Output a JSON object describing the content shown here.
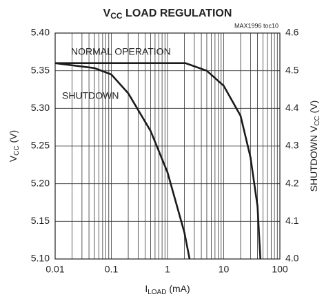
{
  "chart_data": {
    "type": "line",
    "title": [
      "V",
      "CC",
      " LOAD REGULATION"
    ],
    "annotation": "MAX1996 toc10",
    "xlabel": [
      "I",
      "LOAD",
      " (mA)"
    ],
    "ylabel": [
      "V",
      "CC",
      " (V)"
    ],
    "y2label": [
      "SHUTDOWN V",
      "CC",
      " (V)"
    ],
    "xscale": "log",
    "xlim": [
      0.01,
      100
    ],
    "xticks": [
      0.01,
      0.1,
      1,
      10,
      100
    ],
    "ylim": [
      5.1,
      5.4
    ],
    "yticks": [
      {
        "value": 5.1,
        "label": "5.10"
      },
      5.15,
      {
        "value": 5.2,
        "label": "5.20"
      },
      5.25,
      {
        "value": 5.3,
        "label": "5.30"
      },
      5.35,
      {
        "value": 5.4,
        "label": "5.40"
      }
    ],
    "y2lim": [
      4.0,
      4.6
    ],
    "y2ticks": [
      {
        "value": 4.0,
        "label": "4.0"
      },
      4.1,
      4.2,
      4.3,
      4.4,
      4.5,
      4.6
    ],
    "grid": true,
    "series": [
      {
        "name": "NORMAL OPERATION",
        "color": "#1a1a1a",
        "x": [
          0.01,
          0.1,
          1,
          2.1,
          5,
          10,
          20,
          30,
          40,
          45
        ],
        "values": [
          5.36,
          5.36,
          5.36,
          5.36,
          5.35,
          5.33,
          5.29,
          5.235,
          5.17,
          5.1
        ]
      },
      {
        "name": "SHUTDOWN",
        "color": "#1a1a1a",
        "axis": "y2",
        "x": [
          0.01,
          0.05,
          0.1,
          0.2,
          0.5,
          1,
          2,
          2.47
        ],
        "values": [
          4.52,
          4.507,
          4.49,
          4.44,
          4.34,
          4.23,
          4.07,
          4.0
        ]
      }
    ]
  }
}
